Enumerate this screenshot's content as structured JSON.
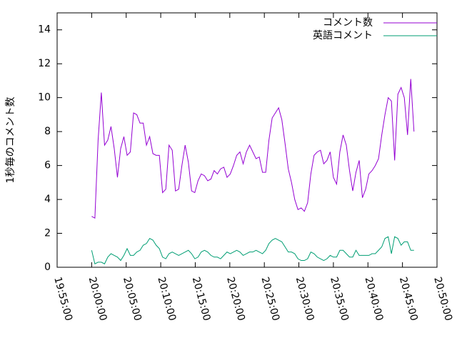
{
  "chart_data": {
    "type": "line",
    "ylabel": "1秒毎のコメント数",
    "x": [
      "20:00:00",
      "20:00:28",
      "20:00:56",
      "20:01:24",
      "20:01:52",
      "20:02:20",
      "20:02:48",
      "20:03:16",
      "20:03:44",
      "20:04:12",
      "20:04:40",
      "20:05:08",
      "20:05:36",
      "20:06:04",
      "20:06:32",
      "20:07:00",
      "20:07:28",
      "20:07:56",
      "20:08:24",
      "20:08:52",
      "20:09:20",
      "20:09:48",
      "20:10:16",
      "20:10:44",
      "20:11:12",
      "20:11:40",
      "20:12:08",
      "20:12:36",
      "20:13:04",
      "20:13:32",
      "20:14:00",
      "20:14:28",
      "20:14:56",
      "20:15:24",
      "20:15:52",
      "20:16:20",
      "20:16:48",
      "20:17:16",
      "20:17:44",
      "20:18:12",
      "20:18:40",
      "20:19:08",
      "20:19:36",
      "20:20:04",
      "20:20:32",
      "20:21:00",
      "20:21:28",
      "20:21:56",
      "20:22:24",
      "20:22:52",
      "20:23:20",
      "20:23:48",
      "20:24:16",
      "20:24:44",
      "20:25:12",
      "20:25:40",
      "20:26:08",
      "20:26:36",
      "20:27:04",
      "20:27:32",
      "20:28:00",
      "20:28:28",
      "20:28:56",
      "20:29:24",
      "20:29:52",
      "20:30:20",
      "20:30:48",
      "20:31:16",
      "20:31:44",
      "20:32:12",
      "20:32:40",
      "20:33:08",
      "20:33:36",
      "20:34:04",
      "20:34:32",
      "20:35:00",
      "20:35:28",
      "20:35:56",
      "20:36:24",
      "20:36:52",
      "20:37:20",
      "20:37:48",
      "20:38:16",
      "20:38:44",
      "20:39:12",
      "20:39:40",
      "20:40:08",
      "20:40:36",
      "20:41:04",
      "20:41:32",
      "20:42:00",
      "20:42:28",
      "20:42:56",
      "20:43:24",
      "20:43:52",
      "20:44:20",
      "20:44:48",
      "20:45:16",
      "20:45:44",
      "20:46:12",
      "20:46:40"
    ],
    "series": [
      {
        "name": "コメント数",
        "color": "#9400d3",
        "values": [
          3.0,
          2.9,
          7.5,
          10.3,
          7.2,
          7.5,
          8.3,
          7.0,
          5.3,
          7.0,
          7.7,
          6.6,
          6.8,
          9.1,
          9.0,
          8.5,
          8.5,
          7.2,
          7.7,
          6.7,
          6.6,
          6.6,
          4.4,
          4.6,
          7.2,
          6.9,
          4.5,
          4.6,
          6.0,
          7.2,
          6.2,
          4.5,
          4.4,
          5.1,
          5.5,
          5.4,
          5.1,
          5.2,
          5.7,
          5.5,
          5.8,
          5.9,
          5.3,
          5.5,
          6.0,
          6.6,
          6.8,
          6.1,
          6.8,
          7.2,
          6.8,
          6.4,
          6.5,
          5.6,
          5.6,
          7.5,
          8.8,
          9.1,
          9.4,
          8.7,
          7.3,
          5.8,
          5.0,
          4.0,
          3.4,
          3.5,
          3.3,
          3.8,
          5.5,
          6.6,
          6.8,
          6.9,
          6.1,
          6.3,
          6.8,
          5.3,
          4.9,
          6.8,
          7.8,
          7.2,
          5.7,
          4.5,
          5.6,
          6.3,
          4.1,
          4.6,
          5.5,
          5.7,
          6.0,
          6.4,
          7.8,
          9.0,
          10.0,
          9.8,
          6.3,
          10.2,
          10.6,
          10.0,
          7.8,
          11.1,
          8.0
        ]
      },
      {
        "name": "英語コメント",
        "color": "#009e73",
        "values": [
          1.0,
          0.2,
          0.3,
          0.3,
          0.2,
          0.6,
          0.8,
          0.7,
          0.6,
          0.4,
          0.7,
          1.1,
          0.7,
          0.7,
          0.9,
          1.0,
          1.3,
          1.4,
          1.7,
          1.6,
          1.3,
          1.1,
          0.6,
          0.5,
          0.8,
          0.9,
          0.8,
          0.7,
          0.8,
          0.9,
          1.0,
          0.8,
          0.5,
          0.6,
          0.9,
          1.0,
          0.9,
          0.7,
          0.6,
          0.6,
          0.5,
          0.7,
          0.9,
          0.8,
          0.9,
          1.0,
          0.9,
          0.7,
          0.8,
          0.9,
          0.9,
          1.0,
          0.9,
          0.8,
          1.0,
          1.4,
          1.6,
          1.7,
          1.6,
          1.5,
          1.2,
          0.9,
          0.9,
          0.8,
          0.5,
          0.4,
          0.4,
          0.5,
          0.9,
          0.8,
          0.6,
          0.5,
          0.4,
          0.5,
          0.7,
          0.6,
          0.6,
          1.0,
          1.0,
          0.8,
          0.6,
          0.6,
          1.0,
          0.7,
          0.7,
          0.7,
          0.7,
          0.8,
          0.8,
          1.0,
          1.2,
          1.7,
          1.8,
          0.8,
          1.8,
          1.7,
          1.3,
          1.5,
          1.5,
          1.0,
          1.0
        ]
      }
    ],
    "xlim": [
      "19:55:00",
      "20:50:00"
    ],
    "xticks": [
      "19:55:00",
      "20:00:00",
      "20:05:00",
      "20:10:00",
      "20:15:00",
      "20:20:00",
      "20:25:00",
      "20:30:00",
      "20:35:00",
      "20:40:00",
      "20:45:00",
      "20:50:00"
    ],
    "ylim": [
      0,
      15
    ],
    "yticks": [
      0,
      2,
      4,
      6,
      8,
      10,
      12,
      14
    ],
    "legend": "top right"
  }
}
